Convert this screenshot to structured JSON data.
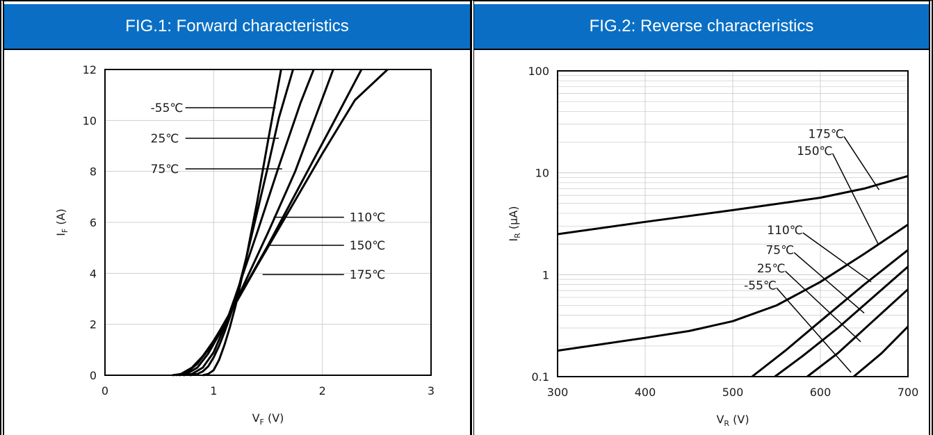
{
  "panels": [
    {
      "title": "FIG.1: Forward characteristics"
    },
    {
      "title": "FIG.2: Reverse characteristics"
    }
  ],
  "colors": {
    "header_bg": "#0a6fc4",
    "header_text": "#ffffff",
    "curve": "#000000",
    "grid": "#cfcfcf"
  },
  "chart_data": [
    {
      "type": "line",
      "title": "FIG.1: Forward characteristics",
      "xlabel": "V_F (V)",
      "ylabel": "I_F (A)",
      "xlabel_main": "V",
      "xlabel_sub": "F",
      "xlabel_unit": " (V)",
      "ylabel_main": "I",
      "ylabel_sub": "F",
      "ylabel_unit": " (A)",
      "xlim": [
        0,
        3
      ],
      "ylim": [
        0,
        12
      ],
      "xticks": [
        0,
        1,
        2,
        3
      ],
      "yticks": [
        0,
        2,
        4,
        6,
        8,
        10,
        12
      ],
      "grid": true,
      "series": [
        {
          "name": "-55℃",
          "x": [
            0.9,
            0.95,
            1.0,
            1.05,
            1.1,
            1.15,
            1.2,
            1.3,
            1.4,
            1.5,
            1.62
          ],
          "y": [
            0.0,
            0.05,
            0.2,
            0.6,
            1.2,
            1.9,
            2.7,
            4.6,
            6.8,
            9.2,
            12
          ]
        },
        {
          "name": "25℃",
          "x": [
            0.78,
            0.85,
            0.9,
            0.95,
            1.0,
            1.05,
            1.1,
            1.15,
            1.2,
            1.3,
            1.4,
            1.5,
            1.6,
            1.73
          ],
          "y": [
            0.0,
            0.05,
            0.15,
            0.35,
            0.7,
            1.15,
            1.7,
            2.3,
            2.95,
            4.6,
            6.4,
            8.2,
            10.1,
            12
          ]
        },
        {
          "name": "75℃",
          "x": [
            0.72,
            0.8,
            0.9,
            1.0,
            1.1,
            1.15,
            1.2,
            1.4,
            1.6,
            1.8,
            1.92
          ],
          "y": [
            0.0,
            0.05,
            0.3,
            0.9,
            1.9,
            2.5,
            3.1,
            5.6,
            8.2,
            10.7,
            12
          ]
        },
        {
          "name": "110℃",
          "x": [
            0.68,
            0.75,
            0.85,
            0.95,
            1.05,
            1.15,
            1.25,
            1.5,
            1.75,
            2.1
          ],
          "y": [
            0.0,
            0.05,
            0.3,
            0.85,
            1.6,
            2.45,
            3.3,
            5.6,
            8.0,
            12
          ]
        },
        {
          "name": "150℃",
          "x": [
            0.65,
            0.75,
            0.85,
            0.95,
            1.05,
            1.15,
            1.25,
            1.5,
            1.8,
            2.1,
            2.36
          ],
          "y": [
            0.0,
            0.1,
            0.45,
            1.0,
            1.7,
            2.45,
            3.2,
            5.1,
            7.5,
            9.9,
            12
          ]
        },
        {
          "name": "175℃",
          "x": [
            0.62,
            0.7,
            0.8,
            0.9,
            1.0,
            1.1,
            1.2,
            1.4,
            1.7,
            2.0,
            2.3,
            2.6
          ],
          "y": [
            0.0,
            0.05,
            0.3,
            0.75,
            1.35,
            2.05,
            2.8,
            4.3,
            6.5,
            8.7,
            10.8,
            12
          ]
        }
      ],
      "annotations": [
        {
          "text": "-55℃",
          "label_x": 0.42,
          "label_y": 10.5,
          "point": [
            1.57,
            10.5
          ],
          "side": "left"
        },
        {
          "text": "25℃",
          "label_x": 0.42,
          "label_y": 9.3,
          "point": [
            1.6,
            9.3
          ],
          "side": "left"
        },
        {
          "text": "75℃",
          "label_x": 0.42,
          "label_y": 8.1,
          "point": [
            1.63,
            8.1
          ],
          "side": "left"
        },
        {
          "text": "110℃",
          "label_x": 2.25,
          "label_y": 6.2,
          "point": [
            1.55,
            6.2
          ],
          "side": "right"
        },
        {
          "text": "150℃",
          "label_x": 2.25,
          "label_y": 5.1,
          "point": [
            1.52,
            5.1
          ],
          "side": "right"
        },
        {
          "text": "175℃",
          "label_x": 2.25,
          "label_y": 3.95,
          "point": [
            1.45,
            3.95
          ],
          "side": "right"
        }
      ]
    },
    {
      "type": "line",
      "title": "FIG.2: Reverse characteristics",
      "xlabel": "V_R (V)",
      "ylabel": "I_R (μA)",
      "xlabel_main": "V",
      "xlabel_sub": "R",
      "xlabel_unit": " (V)",
      "ylabel_main": "I",
      "ylabel_sub": "R",
      "ylabel_unit": " (μA)",
      "xlim": [
        300,
        700
      ],
      "ylim": [
        0.1,
        100
      ],
      "yscale": "log",
      "xticks": [
        300,
        400,
        500,
        600,
        700
      ],
      "yticks": [
        0.1,
        1,
        10,
        100
      ],
      "ytick_labels": [
        "0.1",
        "1",
        "10",
        "100"
      ],
      "grid": true,
      "series": [
        {
          "name": "175℃",
          "x": [
            300,
            400,
            500,
            600,
            650,
            700
          ],
          "y": [
            2.5,
            3.3,
            4.3,
            5.7,
            7.0,
            9.3
          ]
        },
        {
          "name": "150℃",
          "x": [
            300,
            400,
            450,
            500,
            550,
            600,
            650,
            700
          ],
          "y": [
            0.18,
            0.24,
            0.28,
            0.35,
            0.5,
            0.85,
            1.6,
            3.1
          ]
        },
        {
          "name": "110℃",
          "x": [
            522,
            560,
            600,
            650,
            700
          ],
          "y": [
            0.1,
            0.18,
            0.35,
            0.8,
            1.75
          ]
        },
        {
          "name": "75℃",
          "x": [
            548,
            580,
            620,
            660,
            700
          ],
          "y": [
            0.1,
            0.16,
            0.3,
            0.6,
            1.2
          ]
        },
        {
          "name": "25℃",
          "x": [
            585,
            620,
            660,
            700
          ],
          "y": [
            0.1,
            0.17,
            0.35,
            0.72
          ]
        },
        {
          "name": "-55℃",
          "x": [
            638,
            670,
            700
          ],
          "y": [
            0.1,
            0.17,
            0.31
          ]
        }
      ],
      "annotations": [
        {
          "text": "175℃",
          "label_x": 627,
          "label_y": 22,
          "point": [
            667,
            6.8
          ]
        },
        {
          "text": "150℃",
          "label_x": 614,
          "label_y": 15,
          "point": [
            666,
            2.0
          ]
        },
        {
          "text": "110℃",
          "label_x": 580,
          "label_y": 2.5,
          "point": [
            658,
            0.85
          ]
        },
        {
          "text": "75℃",
          "label_x": 570,
          "label_y": 1.6,
          "point": [
            650,
            0.42
          ]
        },
        {
          "text": "25℃",
          "label_x": 560,
          "label_y": 1.05,
          "point": [
            646,
            0.22
          ]
        },
        {
          "text": "-55℃",
          "label_x": 550,
          "label_y": 0.72,
          "point": [
            635,
            0.11
          ]
        }
      ]
    }
  ]
}
